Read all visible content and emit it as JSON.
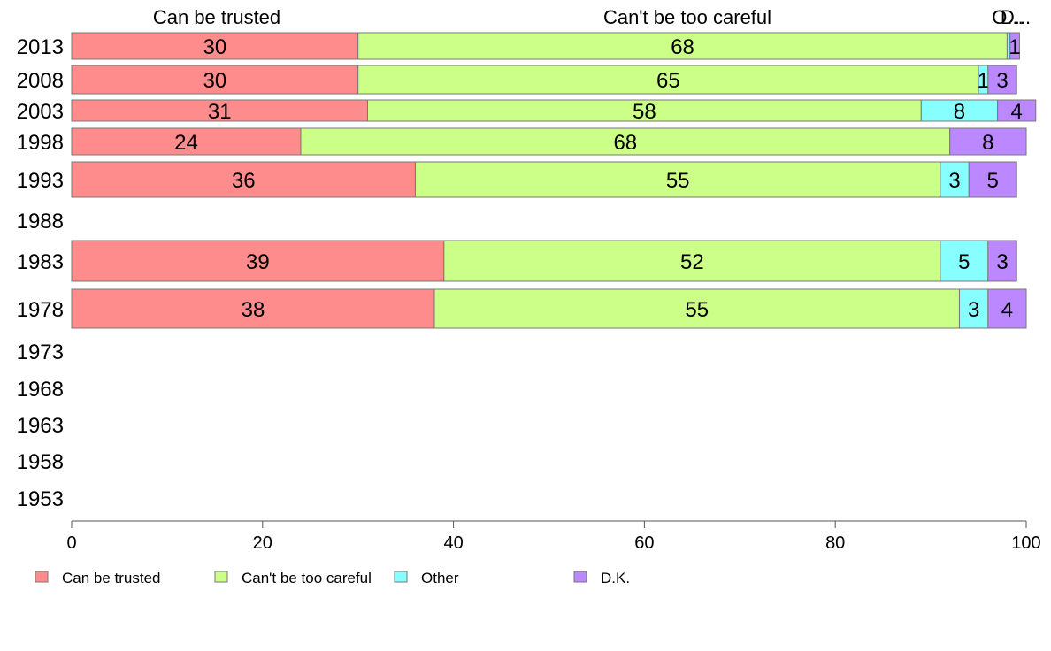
{
  "chart_data": {
    "type": "bar",
    "orientation": "horizontal",
    "stacked": true,
    "x_range": [
      0,
      100
    ],
    "x_ticks": [
      "0",
      "20",
      "40",
      "60",
      "80",
      "100"
    ],
    "grid": false,
    "legend_position": "bottom",
    "categories": [
      "2013",
      "2008",
      "2003",
      "1998",
      "1993",
      "1988",
      "1983",
      "1978",
      "1973",
      "1968",
      "1963",
      "1958",
      "1953"
    ],
    "series": [
      {
        "name": "Can be trusted",
        "color": "#ff8c8c",
        "values": [
          30,
          30,
          31,
          24,
          36,
          null,
          39,
          38,
          null,
          null,
          null,
          null,
          null
        ]
      },
      {
        "name": "Can't be too careful",
        "color": "#ccff88",
        "values": [
          68,
          65,
          58,
          68,
          55,
          null,
          52,
          55,
          null,
          null,
          null,
          null,
          null
        ]
      },
      {
        "name": "Other",
        "color": "#88ffff",
        "values": [
          0.3,
          1,
          8,
          0,
          3,
          null,
          5,
          3,
          null,
          null,
          null,
          null,
          null
        ]
      },
      {
        "name": "D.K.",
        "color": "#bb88ff",
        "values": [
          1,
          3,
          4,
          8,
          5,
          null,
          3,
          4,
          null,
          null,
          null,
          null,
          null
        ]
      }
    ],
    "column_headers": [
      "Can be trusted",
      "Can't be too careful",
      "O...",
      "D..."
    ],
    "legend": [
      "Can be trusted",
      "Can't be too careful",
      "Other",
      "D.K."
    ]
  }
}
